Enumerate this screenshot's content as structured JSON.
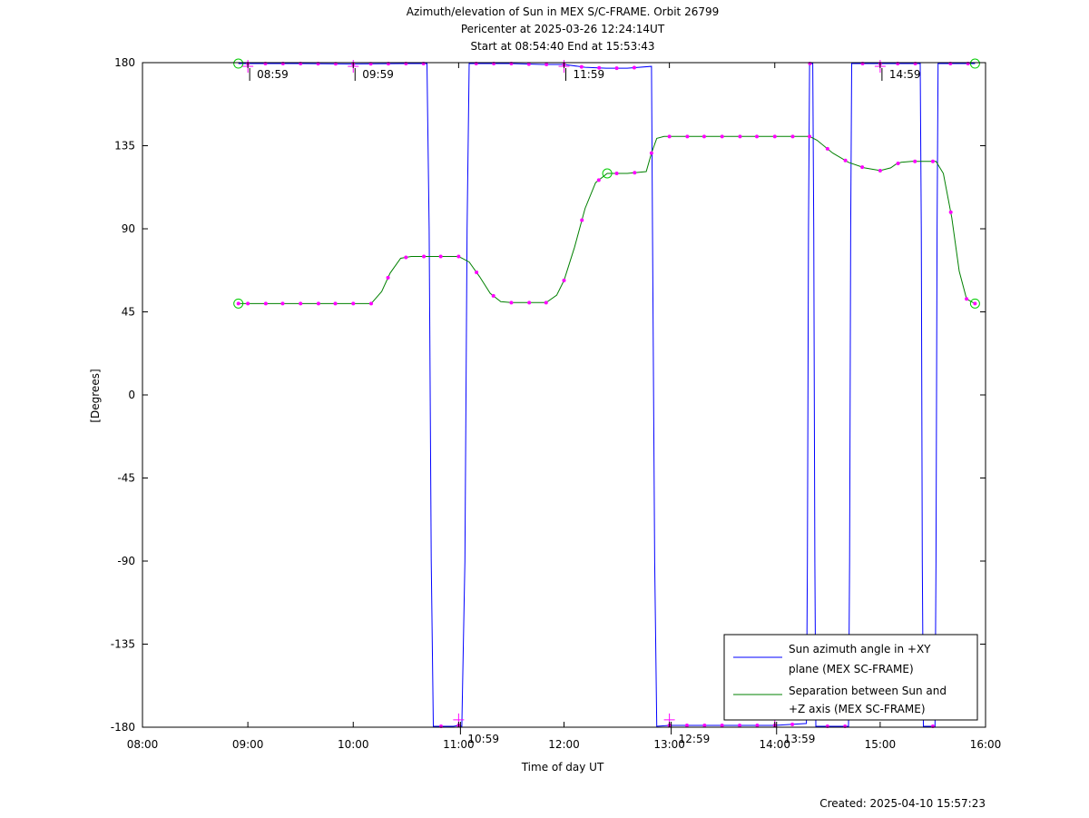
{
  "chart_data": {
    "type": "line",
    "title": [
      "Azimuth/elevation of Sun in MEX S/C-FRAME.  Orbit 26799",
      "Pericenter at 2025-03-26 12:24:14UT",
      "Start at 08:54:40 End at 15:53:43"
    ],
    "xlabel": "Time of day UT",
    "ylabel": "[Degrees]",
    "xlim": [
      8.0,
      16.0
    ],
    "ylim": [
      -180,
      180
    ],
    "xticks": [
      {
        "value": 8,
        "label": "08:00"
      },
      {
        "value": 9,
        "label": "09:00"
      },
      {
        "value": 10,
        "label": "10:00"
      },
      {
        "value": 11,
        "label": "11:00"
      },
      {
        "value": 12,
        "label": "12:00"
      },
      {
        "value": 13,
        "label": "13:00"
      },
      {
        "value": 14,
        "label": "14:00"
      },
      {
        "value": 15,
        "label": "15:00"
      },
      {
        "value": 16,
        "label": "16:00"
      }
    ],
    "yticks": [
      {
        "value": 180,
        "label": "180"
      },
      {
        "value": 135,
        "label": "135"
      },
      {
        "value": 90,
        "label": "90"
      },
      {
        "value": 45,
        "label": "45"
      },
      {
        "value": 0,
        "label": "0"
      },
      {
        "value": -45,
        "label": "-45"
      },
      {
        "value": -90,
        "label": "-90"
      },
      {
        "value": -135,
        "label": "-135"
      },
      {
        "value": -180,
        "label": "-180"
      }
    ],
    "grid": false,
    "legend_position": "bottom-right",
    "series": [
      {
        "name": "Sun azimuth angle in +XY plane (MEX SC-FRAME)",
        "legend_lines": [
          "Sun azimuth angle in +XY",
          "plane (MEX SC-FRAME)"
        ],
        "color": "#0000ff",
        "points": [
          [
            8.91,
            179.5
          ],
          [
            9.0,
            179.5
          ],
          [
            9.5,
            179.5
          ],
          [
            10.0,
            179.3
          ],
          [
            10.5,
            179.5
          ],
          [
            10.7,
            179.5
          ],
          [
            10.72,
            90
          ],
          [
            10.74,
            -90
          ],
          [
            10.76,
            -179.5
          ],
          [
            10.95,
            -179.5
          ],
          [
            11.0,
            -179.0
          ],
          [
            11.03,
            -179.5
          ],
          [
            11.06,
            -90
          ],
          [
            11.08,
            90
          ],
          [
            11.1,
            179.5
          ],
          [
            11.5,
            179.5
          ],
          [
            11.8,
            179.0
          ],
          [
            12.0,
            179.0
          ],
          [
            12.2,
            177.5
          ],
          [
            12.4,
            177.0
          ],
          [
            12.6,
            177.0
          ],
          [
            12.83,
            178.0
          ],
          [
            12.84,
            90
          ],
          [
            12.85,
            0
          ],
          [
            12.86,
            -90
          ],
          [
            12.88,
            -179.5
          ],
          [
            13.0,
            -179.0
          ],
          [
            13.5,
            -179.0
          ],
          [
            14.0,
            -179.0
          ],
          [
            14.3,
            -178.0
          ],
          [
            14.31,
            -90
          ],
          [
            14.32,
            90
          ],
          [
            14.33,
            179.5
          ],
          [
            14.36,
            179.5
          ],
          [
            14.37,
            90
          ],
          [
            14.38,
            -90
          ],
          [
            14.39,
            -179.5
          ],
          [
            14.7,
            -179.5
          ],
          [
            14.71,
            -90
          ],
          [
            14.72,
            90
          ],
          [
            14.73,
            179.5
          ],
          [
            15.0,
            179.5
          ],
          [
            15.2,
            179.5
          ],
          [
            15.38,
            179.5
          ],
          [
            15.39,
            90
          ],
          [
            15.4,
            -90
          ],
          [
            15.41,
            -179.5
          ],
          [
            15.52,
            -179.5
          ],
          [
            15.53,
            -90
          ],
          [
            15.54,
            90
          ],
          [
            15.55,
            179.5
          ],
          [
            15.9,
            179.5
          ]
        ]
      },
      {
        "name": "Separation between Sun and +Z axis (MEX SC-FRAME)",
        "legend_lines": [
          "Separation between Sun and",
          "+Z axis (MEX SC-FRAME)"
        ],
        "color": "#008000",
        "points": [
          [
            8.91,
            49.5
          ],
          [
            9.0,
            49.5
          ],
          [
            9.5,
            49.5
          ],
          [
            10.0,
            49.5
          ],
          [
            10.17,
            49.5
          ],
          [
            10.27,
            56
          ],
          [
            10.35,
            66
          ],
          [
            10.45,
            74
          ],
          [
            10.55,
            75.0
          ],
          [
            10.8,
            75.0
          ],
          [
            11.0,
            75.0
          ],
          [
            11.1,
            72
          ],
          [
            11.2,
            64
          ],
          [
            11.3,
            55
          ],
          [
            11.4,
            50.5
          ],
          [
            11.5,
            50.0
          ],
          [
            11.83,
            50.0
          ],
          [
            11.93,
            54
          ],
          [
            12.0,
            62
          ],
          [
            12.1,
            80
          ],
          [
            12.2,
            101
          ],
          [
            12.3,
            115
          ],
          [
            12.41,
            120.0
          ],
          [
            12.6,
            120.0
          ],
          [
            12.78,
            121
          ],
          [
            12.83,
            131
          ],
          [
            12.88,
            139
          ],
          [
            12.95,
            140.0
          ],
          [
            13.5,
            140.0
          ],
          [
            14.0,
            140.0
          ],
          [
            14.33,
            140.0
          ],
          [
            14.4,
            138
          ],
          [
            14.55,
            131
          ],
          [
            14.7,
            126
          ],
          [
            14.85,
            123
          ],
          [
            15.0,
            121.5
          ],
          [
            15.1,
            123
          ],
          [
            15.15,
            125
          ],
          [
            15.2,
            126
          ],
          [
            15.3,
            126.5
          ],
          [
            15.53,
            126.5
          ],
          [
            15.6,
            120
          ],
          [
            15.68,
            96
          ],
          [
            15.75,
            67
          ],
          [
            15.82,
            52
          ],
          [
            15.9,
            49.5
          ]
        ],
        "markers": [
          8.91,
          9.0,
          9.17,
          9.33,
          9.5,
          9.67,
          9.83,
          10.0,
          10.17,
          10.33,
          10.5,
          10.67,
          10.83,
          11.0,
          11.17,
          11.33,
          11.5,
          11.67,
          11.83,
          12.0,
          12.17,
          12.33,
          12.5,
          12.67,
          12.83,
          13.0,
          13.17,
          13.33,
          13.5,
          13.67,
          13.83,
          14.0,
          14.17,
          14.33,
          14.5,
          14.67,
          14.83,
          15.0,
          15.17,
          15.33,
          15.5,
          15.67,
          15.82,
          15.9
        ]
      }
    ],
    "annotations": [
      {
        "x": 9.0,
        "y": 178,
        "label": "08:59"
      },
      {
        "x": 10.0,
        "y": 178,
        "label": "09:59"
      },
      {
        "x": 11.0,
        "y": -176,
        "label": "10:59"
      },
      {
        "x": 12.0,
        "y": 178,
        "label": "11:59"
      },
      {
        "x": 13.0,
        "y": -176,
        "label": "12:59"
      },
      {
        "x": 14.0,
        "y": -176,
        "label": "13:59"
      },
      {
        "x": 15.0,
        "y": 178,
        "label": "14:59"
      }
    ],
    "highlight_points": [
      {
        "x": 8.91,
        "y": 179.5
      },
      {
        "x": 8.91,
        "y": 49.5
      },
      {
        "x": 12.41,
        "y": 120.0
      },
      {
        "x": 15.9,
        "y": 179.5
      },
      {
        "x": 15.9,
        "y": 49.5
      }
    ],
    "footer": "Created: 2025-04-10 15:57:23"
  }
}
